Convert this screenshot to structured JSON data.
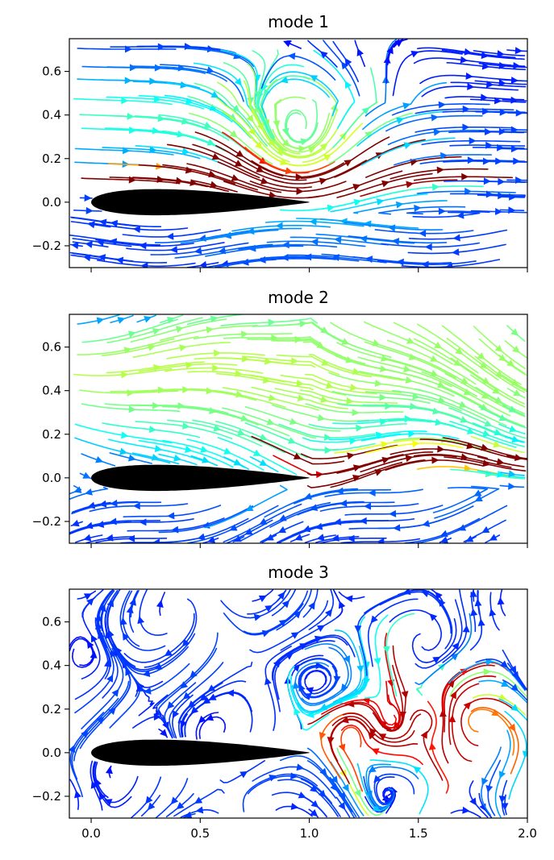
{
  "chart_data": [
    {
      "type": "streamplot",
      "title": "mode 1",
      "xlim": [
        -0.1,
        2.0
      ],
      "ylim": [
        -0.3,
        0.75
      ],
      "xticks": [
        0.0,
        0.5,
        1.0,
        1.5,
        2.0
      ],
      "yticks": [
        -0.2,
        0.0,
        0.2,
        0.4,
        0.6
      ],
      "ytick_labels": [
        "−0.2",
        "0.0",
        "0.2",
        "0.4",
        "0.6"
      ],
      "colormap": "jet",
      "shape": "airfoil",
      "airfoil": {
        "leading_edge": 0.0,
        "trailing_edge": 1.0,
        "max_thickness_y": 0.06
      },
      "vortices": [
        {
          "x": 0.95,
          "y": 0.17,
          "strength": 1.0
        }
      ],
      "high_speed_band": {
        "y": 0.1,
        "x_from": 0.2,
        "x_to": 1.5
      }
    },
    {
      "type": "streamplot",
      "title": "mode 2",
      "xlim": [
        -0.1,
        2.0
      ],
      "ylim": [
        -0.3,
        0.75
      ],
      "xticks": [
        0.0,
        0.5,
        1.0,
        1.5,
        2.0
      ],
      "yticks": [
        -0.2,
        0.0,
        0.2,
        0.4,
        0.6
      ],
      "ytick_labels": [
        "−0.2",
        "0.0",
        "0.2",
        "0.4",
        "0.6"
      ],
      "colormap": "jet",
      "shape": "airfoil",
      "airfoil": {
        "leading_edge": 0.0,
        "trailing_edge": 1.0,
        "max_thickness_y": 0.06
      },
      "vortices": [],
      "high_speed_band": {
        "y": 0.08,
        "x_from": 1.0,
        "x_to": 2.0
      }
    },
    {
      "type": "streamplot",
      "title": "mode 3",
      "xlim": [
        -0.1,
        2.0
      ],
      "ylim": [
        -0.3,
        0.75
      ],
      "xticks": [
        0.0,
        0.5,
        1.0,
        1.5,
        2.0
      ],
      "xtick_labels": [
        "0.0",
        "0.5",
        "1.0",
        "1.5",
        "2.0"
      ],
      "yticks": [
        -0.2,
        0.0,
        0.2,
        0.4,
        0.6
      ],
      "ytick_labels": [
        "−0.2",
        "0.0",
        "0.2",
        "0.4",
        "0.6"
      ],
      "colormap": "jet",
      "shape": "airfoil",
      "airfoil": {
        "leading_edge": 0.0,
        "trailing_edge": 1.0,
        "max_thickness_y": 0.06
      },
      "vortices": [
        {
          "x": 1.2,
          "y": 0.1,
          "strength": 1.0
        },
        {
          "x": 1.38,
          "y": 0.13,
          "strength": -1.0
        },
        {
          "x": 1.55,
          "y": 0.14,
          "strength": 1.0
        },
        {
          "x": 1.75,
          "y": 0.15,
          "strength": -1.0
        }
      ],
      "high_speed_band": null
    }
  ]
}
